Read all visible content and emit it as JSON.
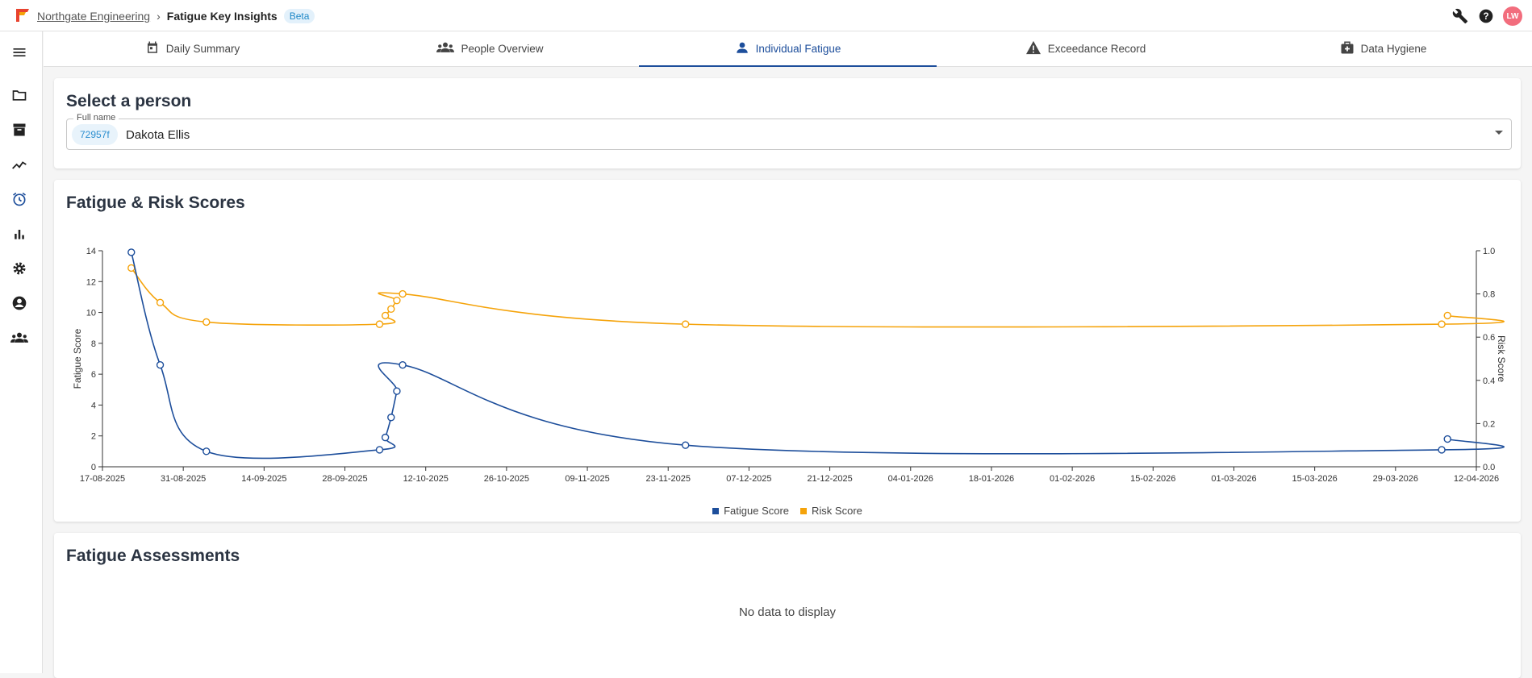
{
  "header": {
    "org": "Northgate Engineering",
    "separator": "›",
    "app": "Fatigue Key Insights",
    "badge": "Beta",
    "avatar_initials": "LW",
    "actions": [
      "wrench-icon",
      "help-icon"
    ]
  },
  "sidebar": {
    "items": [
      "menu-icon",
      "folder-icon",
      "archive-icon",
      "trend-icon",
      "alarm-icon",
      "bar-chart-icon",
      "gear-icon",
      "account-icon",
      "groups-icon"
    ],
    "active_item": "alarm-icon"
  },
  "tabs": [
    {
      "label": "Daily Summary",
      "icon": "calendar-icon",
      "active": false
    },
    {
      "label": "People Overview",
      "icon": "groups-icon",
      "active": false
    },
    {
      "label": "Individual Fatigue",
      "icon": "person-icon",
      "active": true
    },
    {
      "label": "Exceedance Record",
      "icon": "warning-icon",
      "active": false
    },
    {
      "label": "Data Hygiene",
      "icon": "medical-bag-icon",
      "active": false
    }
  ],
  "select_person": {
    "title": "Select a person",
    "field_label": "Full name",
    "chip": "72957f",
    "value": "Dakota Ellis"
  },
  "scores_card": {
    "title": "Fatigue & Risk Scores"
  },
  "chart_data": {
    "type": "line",
    "title": "",
    "x_ticks": [
      "17-08-2025",
      "31-08-2025",
      "14-09-2025",
      "28-09-2025",
      "12-10-2025",
      "26-10-2025",
      "09-11-2025",
      "23-11-2025",
      "07-12-2025",
      "21-12-2025",
      "04-01-2026",
      "18-01-2026",
      "01-02-2026",
      "15-02-2026",
      "01-03-2026",
      "15-03-2026",
      "29-03-2026",
      "12-04-2026"
    ],
    "xlim": [
      "17-08-2025",
      "12-04-2026"
    ],
    "y_left": {
      "label": "Fatigue Score",
      "range": [
        0,
        14
      ],
      "ticks": [
        0,
        2,
        4,
        6,
        8,
        10,
        12,
        14
      ]
    },
    "y_right": {
      "label": "Risk Score",
      "range": [
        0,
        1
      ],
      "ticks": [
        "0.0",
        "0.2",
        "0.4",
        "0.6",
        "0.8",
        "1.0"
      ]
    },
    "colors": {
      "fatigue": "#1d4e9b",
      "risk": "#f5a30a"
    },
    "legend_position": "bottom",
    "series": [
      {
        "name": "Fatigue Score",
        "axis": "left",
        "x": [
          "22-08-2025",
          "27-08-2025",
          "04-09-2025",
          "04-10-2025",
          "05-10-2025",
          "06-10-2025",
          "07-10-2025",
          "08-10-2025",
          "26-11-2025",
          "06-04-2026",
          "07-04-2026"
        ],
        "values": [
          13.9,
          6.6,
          1.0,
          1.1,
          1.9,
          3.2,
          4.9,
          6.6,
          1.4,
          1.1,
          1.8
        ]
      },
      {
        "name": "Risk Score",
        "axis": "right",
        "x": [
          "22-08-2025",
          "27-08-2025",
          "04-09-2025",
          "04-10-2025",
          "05-10-2025",
          "06-10-2025",
          "07-10-2025",
          "08-10-2025",
          "26-11-2025",
          "06-04-2026",
          "07-04-2026"
        ],
        "values": [
          0.92,
          0.76,
          0.67,
          0.66,
          0.7,
          0.73,
          0.77,
          0.8,
          0.66,
          0.66,
          0.7
        ]
      }
    ]
  },
  "assessments": {
    "title": "Fatigue Assessments",
    "empty_text": "No data to display"
  }
}
